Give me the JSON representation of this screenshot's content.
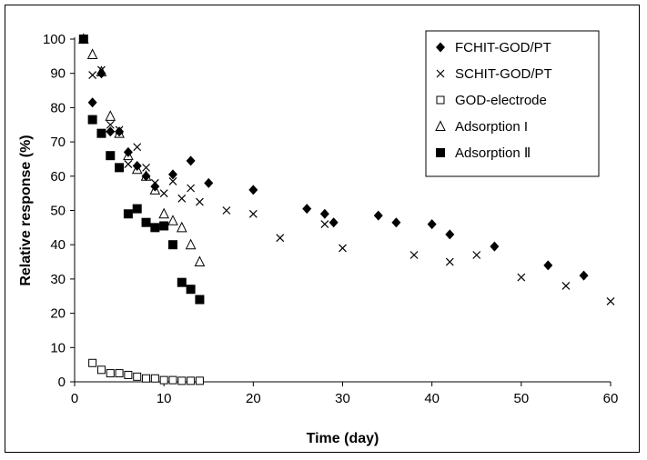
{
  "chart_data": {
    "type": "scatter",
    "xlabel": "Time (day)",
    "ylabel": "Relative response (%)",
    "xlim": [
      0,
      60
    ],
    "ylim": [
      0,
      100
    ],
    "xticks": [
      "0",
      "10",
      "20",
      "30",
      "40",
      "50",
      "60"
    ],
    "yticks": [
      "0",
      "10",
      "20",
      "30",
      "40",
      "50",
      "60",
      "70",
      "80",
      "90",
      "100"
    ],
    "grid": false,
    "legend_position": "top-right",
    "series": [
      {
        "name": "FCHIT-GOD/PT",
        "marker": "diamond-filled",
        "x": [
          1,
          2,
          3,
          4,
          5,
          6,
          7,
          8,
          9,
          11,
          13,
          15,
          20,
          26,
          28,
          29,
          34,
          36,
          40,
          42,
          47,
          53,
          57
        ],
        "y": [
          100,
          81.5,
          90,
          73,
          73,
          67,
          63,
          60,
          57,
          60.5,
          64.5,
          58,
          56,
          50.5,
          49,
          46.5,
          48.5,
          46.5,
          46,
          43,
          39.5,
          34,
          31
        ]
      },
      {
        "name": "SCHIT-GOD/PT",
        "marker": "x",
        "x": [
          1,
          2,
          3,
          4,
          5,
          6,
          7,
          8,
          9,
          10,
          11,
          12,
          13,
          14,
          17,
          20,
          23,
          28,
          30,
          38,
          42,
          45,
          50,
          55,
          60
        ],
        "y": [
          100,
          89.5,
          91,
          75,
          73.5,
          63.5,
          68.5,
          62.5,
          58,
          55,
          58.5,
          53.5,
          56.5,
          52.5,
          50,
          49,
          42,
          46,
          39,
          37,
          35,
          37,
          30.5,
          28,
          23.5
        ]
      },
      {
        "name": "GOD-electrode",
        "marker": "square-open",
        "x": [
          2,
          3,
          4,
          5,
          6,
          7,
          8,
          9,
          10,
          11,
          12,
          13,
          14
        ],
        "y": [
          5.5,
          3.5,
          2.5,
          2.5,
          2,
          1.5,
          1,
          1,
          0.5,
          0.5,
          0.3,
          0.3,
          0.3
        ]
      },
      {
        "name": "Adsorption I",
        "marker": "triangle-open",
        "x": [
          1,
          2,
          3,
          4,
          5,
          6,
          7,
          8,
          9,
          10,
          11,
          12,
          13,
          14
        ],
        "y": [
          100,
          95.5,
          90.5,
          77.5,
          72.5,
          66,
          62,
          60,
          56,
          49,
          47,
          45,
          40,
          35
        ]
      },
      {
        "name": "Adsorption Ⅱ",
        "marker": "square-filled",
        "x": [
          1,
          2,
          3,
          4,
          5,
          6,
          7,
          8,
          9,
          10,
          11,
          12,
          13,
          14
        ],
        "y": [
          100,
          76.5,
          72.5,
          66,
          62.5,
          49,
          50.5,
          46.5,
          45,
          45.5,
          40,
          29,
          27,
          24
        ]
      }
    ]
  }
}
